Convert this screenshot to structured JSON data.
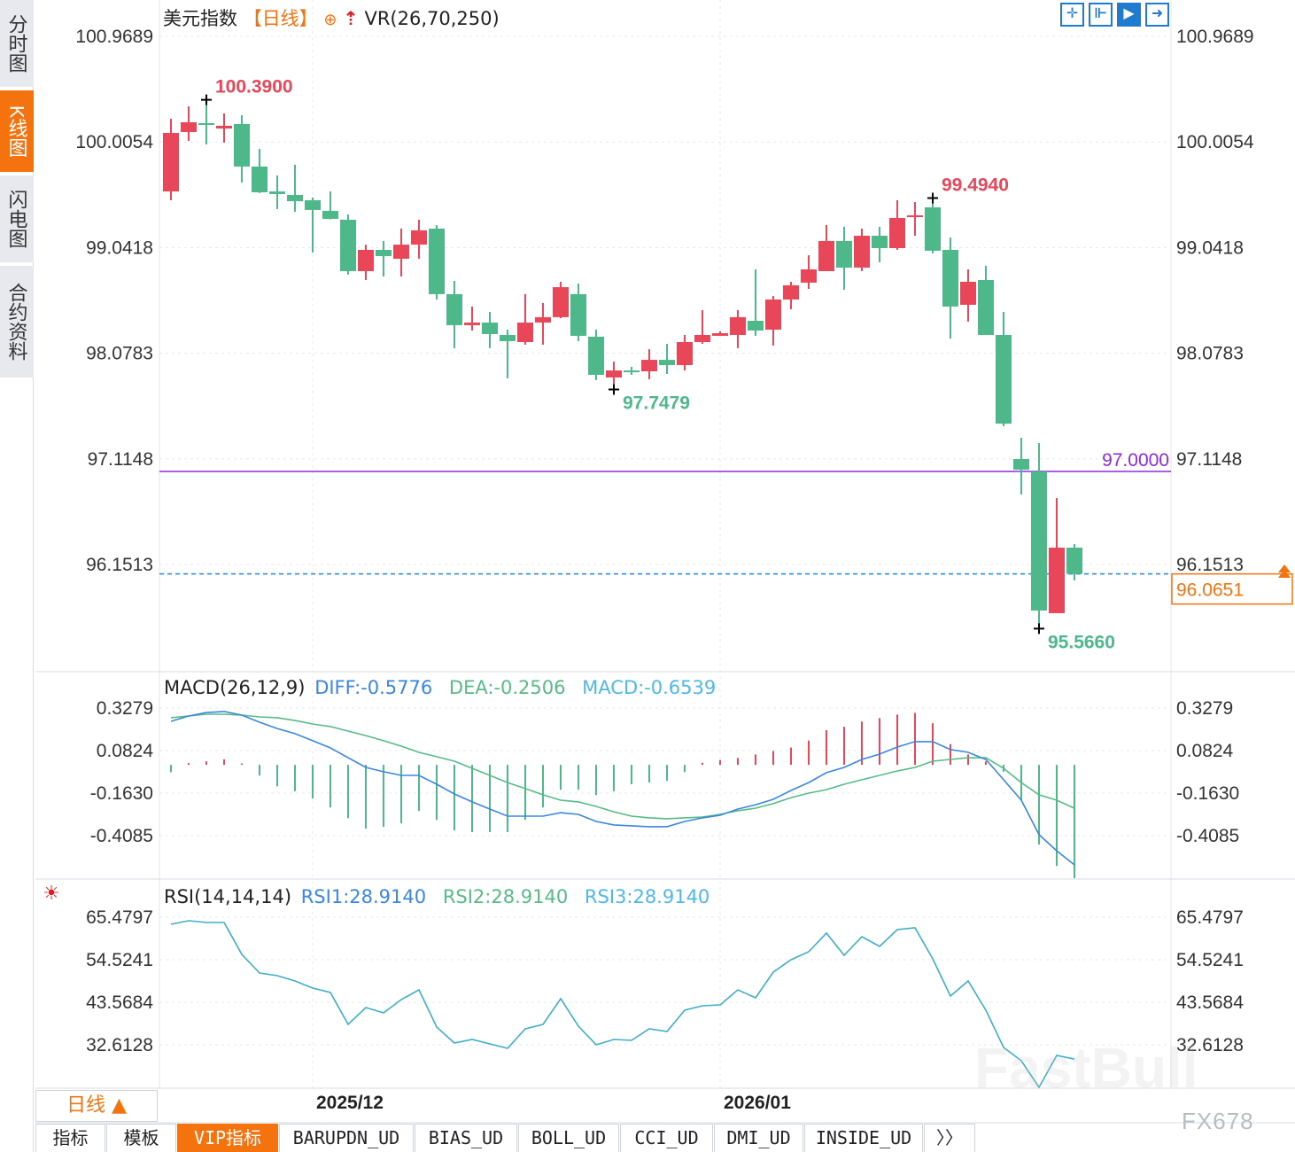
{
  "sidebar": {
    "items": [
      {
        "label": "分时图",
        "active": false
      },
      {
        "label": "K线图",
        "active": true
      },
      {
        "label": "闪电图",
        "active": false
      },
      {
        "label": "合约资料",
        "active": false
      }
    ]
  },
  "header": {
    "symbol": "美元指数",
    "period": "【日线】",
    "indicator": "VR(26,70,250)"
  },
  "toolbar": {
    "icons": [
      "crosshair-icon",
      "range-select-icon",
      "play-icon",
      "move-right-icon"
    ]
  },
  "macd_header": {
    "title": "MACD(26,12,9)",
    "diff": "DIFF:-0.5776",
    "dea": "DEA:-0.2506",
    "macd": "MACD:-0.6539"
  },
  "rsi_header": {
    "title": "RSI(14,14,14)",
    "rsi1": "RSI1:28.9140",
    "rsi2": "RSI2:28.9140",
    "rsi3": "RSI3:28.9140"
  },
  "period_button": {
    "label": "日线 ▲"
  },
  "date_labels": [
    "2025/12",
    "2026/01"
  ],
  "tabs": [
    "指标",
    "模板",
    "VIP指标",
    "BARUPDN_UD",
    "BIAS_UD",
    "BOLL_UD",
    "CCI_UD",
    "DMI_UD",
    "INSIDE_UD",
    "〉〉"
  ],
  "watermark": {
    "brand": "FastBull",
    "code": "FX678"
  },
  "colors": {
    "up": "#e8475a",
    "down": "#4fb88a",
    "accent": "#f5730f",
    "diff": "#3a86e0",
    "dea": "#56bb86",
    "rsi": "#3eaec8",
    "level": "#8a2be2",
    "last": "#1e88e5"
  },
  "chart_data": [
    {
      "type": "candlestick",
      "title": "美元指数 【日线】",
      "yticks": [
        "100.9689",
        "100.0054",
        "99.0418",
        "98.0783",
        "97.1148",
        "96.1513"
      ],
      "ylim": [
        95.0,
        101.3
      ],
      "xlabels": [
        {
          "text": "2025/12",
          "index": 8
        },
        {
          "text": "2026/01",
          "index": 31
        }
      ],
      "annotations": {
        "high": {
          "text": "100.3900",
          "index": 2,
          "value": 100.39
        },
        "low1": {
          "text": "97.7479",
          "index": 25,
          "value": 97.7479
        },
        "high2": {
          "text": "99.4940",
          "index": 43,
          "value": 99.494
        },
        "low2": {
          "text": "95.5660",
          "index": 49,
          "value": 95.566
        },
        "level": {
          "text": "97.0000",
          "value": 97.0
        },
        "last": {
          "text": "96.0651",
          "value": 96.0651
        }
      },
      "ohlc": [
        [
          99.554,
          100.217,
          99.474,
          100.088
        ],
        [
          100.096,
          100.33,
          100.015,
          100.185
        ],
        [
          100.177,
          100.39,
          99.983,
          100.169
        ],
        [
          100.128,
          100.266,
          99.999,
          100.153
        ],
        [
          100.169,
          100.25,
          99.635,
          99.781
        ],
        [
          99.781,
          99.942,
          99.54,
          99.546
        ],
        [
          99.554,
          99.7,
          99.393,
          99.53
        ],
        [
          99.522,
          99.797,
          99.368,
          99.465
        ],
        [
          99.474,
          99.498,
          98.997,
          99.385
        ],
        [
          99.377,
          99.554,
          99.3,
          99.304
        ],
        [
          99.296,
          99.344,
          98.795,
          98.827
        ],
        [
          98.827,
          99.069,
          98.746,
          99.021
        ],
        [
          99.021,
          99.102,
          98.778,
          98.964
        ],
        [
          98.94,
          99.215,
          98.778,
          99.069
        ],
        [
          99.069,
          99.296,
          98.94,
          99.199
        ],
        [
          99.215,
          99.247,
          98.568,
          98.617
        ],
        [
          98.617,
          98.738,
          98.124,
          98.334
        ],
        [
          98.334,
          98.504,
          98.285,
          98.358
        ],
        [
          98.358,
          98.455,
          98.124,
          98.253
        ],
        [
          98.245,
          98.293,
          97.849,
          98.188
        ],
        [
          98.18,
          98.617,
          98.156,
          98.358
        ],
        [
          98.358,
          98.536,
          98.156,
          98.407
        ],
        [
          98.407,
          98.73,
          98.398,
          98.681
        ],
        [
          98.617,
          98.714,
          98.188,
          98.237
        ],
        [
          98.229,
          98.293,
          97.833,
          97.881
        ],
        [
          97.857,
          98.002,
          97.748,
          97.921
        ],
        [
          97.921,
          97.954,
          97.881,
          97.913
        ],
        [
          97.913,
          98.115,
          97.841,
          98.018
        ],
        [
          98.018,
          98.164,
          97.889,
          97.97
        ],
        [
          97.97,
          98.245,
          97.921,
          98.18
        ],
        [
          98.18,
          98.471,
          98.164,
          98.245
        ],
        [
          98.237,
          98.277,
          98.237,
          98.261
        ],
        [
          98.245,
          98.471,
          98.124,
          98.407
        ],
        [
          98.374,
          98.843,
          98.237,
          98.285
        ],
        [
          98.293,
          98.6,
          98.148,
          98.568
        ],
        [
          98.568,
          98.73,
          98.479,
          98.698
        ],
        [
          98.722,
          98.972,
          98.665,
          98.843
        ],
        [
          98.827,
          99.247,
          98.827,
          99.102
        ],
        [
          99.102,
          99.231,
          98.657,
          98.859
        ],
        [
          98.859,
          99.215,
          98.827,
          99.15
        ],
        [
          99.15,
          99.231,
          98.908,
          99.037
        ],
        [
          99.037,
          99.474,
          99.021,
          99.312
        ],
        [
          99.328,
          99.457,
          99.15,
          99.336
        ],
        [
          99.409,
          99.494,
          98.989,
          99.013
        ],
        [
          99.021,
          99.134,
          98.212,
          98.504
        ],
        [
          98.52,
          98.843,
          98.366,
          98.73
        ],
        [
          98.746,
          98.876,
          98.245,
          98.245
        ],
        [
          98.245,
          98.455,
          97.412,
          97.436
        ],
        [
          97.113,
          97.307,
          96.79,
          97.016
        ],
        [
          97.0,
          97.259,
          95.566,
          95.731
        ],
        [
          95.707,
          96.757,
          95.707,
          96.305
        ],
        [
          96.305,
          96.337,
          96.006,
          96.0651
        ]
      ]
    },
    {
      "type": "line",
      "title": "MACD(26,12,9)",
      "yticks": [
        "0.3279",
        "0.0824",
        "-0.1630",
        "-0.4085"
      ],
      "series": [
        {
          "name": "DIFF",
          "values": [
            0.251,
            0.282,
            0.302,
            0.308,
            0.287,
            0.246,
            0.21,
            0.18,
            0.139,
            0.098,
            0.041,
            -0.015,
            -0.04,
            -0.061,
            -0.061,
            -0.112,
            -0.168,
            -0.214,
            -0.255,
            -0.296,
            -0.296,
            -0.296,
            -0.276,
            -0.286,
            -0.327,
            -0.347,
            -0.352,
            -0.357,
            -0.357,
            -0.327,
            -0.306,
            -0.291,
            -0.255,
            -0.23,
            -0.199,
            -0.148,
            -0.102,
            -0.045,
            -0.015,
            0.031,
            0.062,
            0.103,
            0.134,
            0.134,
            0.088,
            0.072,
            0.031,
            -0.086,
            -0.204,
            -0.403,
            -0.496,
            -0.5776
          ]
        },
        {
          "name": "DEA",
          "values": [
            0.272,
            0.282,
            0.292,
            0.292,
            0.287,
            0.277,
            0.272,
            0.256,
            0.236,
            0.221,
            0.195,
            0.169,
            0.139,
            0.108,
            0.072,
            0.047,
            0.021,
            -0.02,
            -0.061,
            -0.102,
            -0.137,
            -0.173,
            -0.204,
            -0.214,
            -0.24,
            -0.271,
            -0.296,
            -0.306,
            -0.311,
            -0.306,
            -0.301,
            -0.286,
            -0.265,
            -0.25,
            -0.224,
            -0.189,
            -0.163,
            -0.143,
            -0.112,
            -0.086,
            -0.061,
            -0.035,
            -0.015,
            0.021,
            0.031,
            0.041,
            0.041,
            -0.02,
            -0.102,
            -0.173,
            -0.204,
            -0.2506
          ]
        },
        {
          "name": "MACD",
          "values": [
            -0.042,
            0.01,
            0.02,
            0.032,
            0.008,
            -0.062,
            -0.124,
            -0.152,
            -0.194,
            -0.246,
            -0.308,
            -0.368,
            -0.358,
            -0.338,
            -0.266,
            -0.318,
            -0.378,
            -0.388,
            -0.388,
            -0.388,
            -0.318,
            -0.246,
            -0.144,
            -0.144,
            -0.174,
            -0.152,
            -0.112,
            -0.102,
            -0.092,
            -0.042,
            0.012,
            0.028,
            0.04,
            0.06,
            0.08,
            0.1,
            0.14,
            0.2,
            0.22,
            0.25,
            0.27,
            0.29,
            0.3,
            0.24,
            0.12,
            0.06,
            0.02,
            -0.04,
            -0.204,
            -0.46,
            -0.584,
            -0.6539
          ]
        }
      ]
    },
    {
      "type": "line",
      "title": "RSI(14,14,14)",
      "yticks": [
        "65.4797",
        "54.5241",
        "43.5684",
        "32.6128"
      ],
      "series": [
        {
          "name": "RSI",
          "values": [
            63.65,
            64.57,
            64.11,
            64.11,
            55.89,
            51.1,
            50.42,
            49.05,
            47.22,
            46.08,
            37.86,
            42.2,
            40.83,
            44.25,
            46.76,
            37.18,
            33.07,
            33.98,
            32.84,
            31.7,
            36.72,
            37.86,
            44.48,
            37.41,
            32.61,
            33.98,
            33.75,
            36.72,
            36.04,
            41.51,
            42.66,
            42.88,
            46.76,
            44.71,
            51.33,
            54.52,
            56.58,
            61.37,
            55.67,
            60.46,
            57.95,
            62.28,
            62.74,
            54.75,
            45.17,
            49.05,
            41.51,
            31.93,
            28.5,
            21.66,
            29.87,
            28.914
          ]
        }
      ]
    }
  ]
}
